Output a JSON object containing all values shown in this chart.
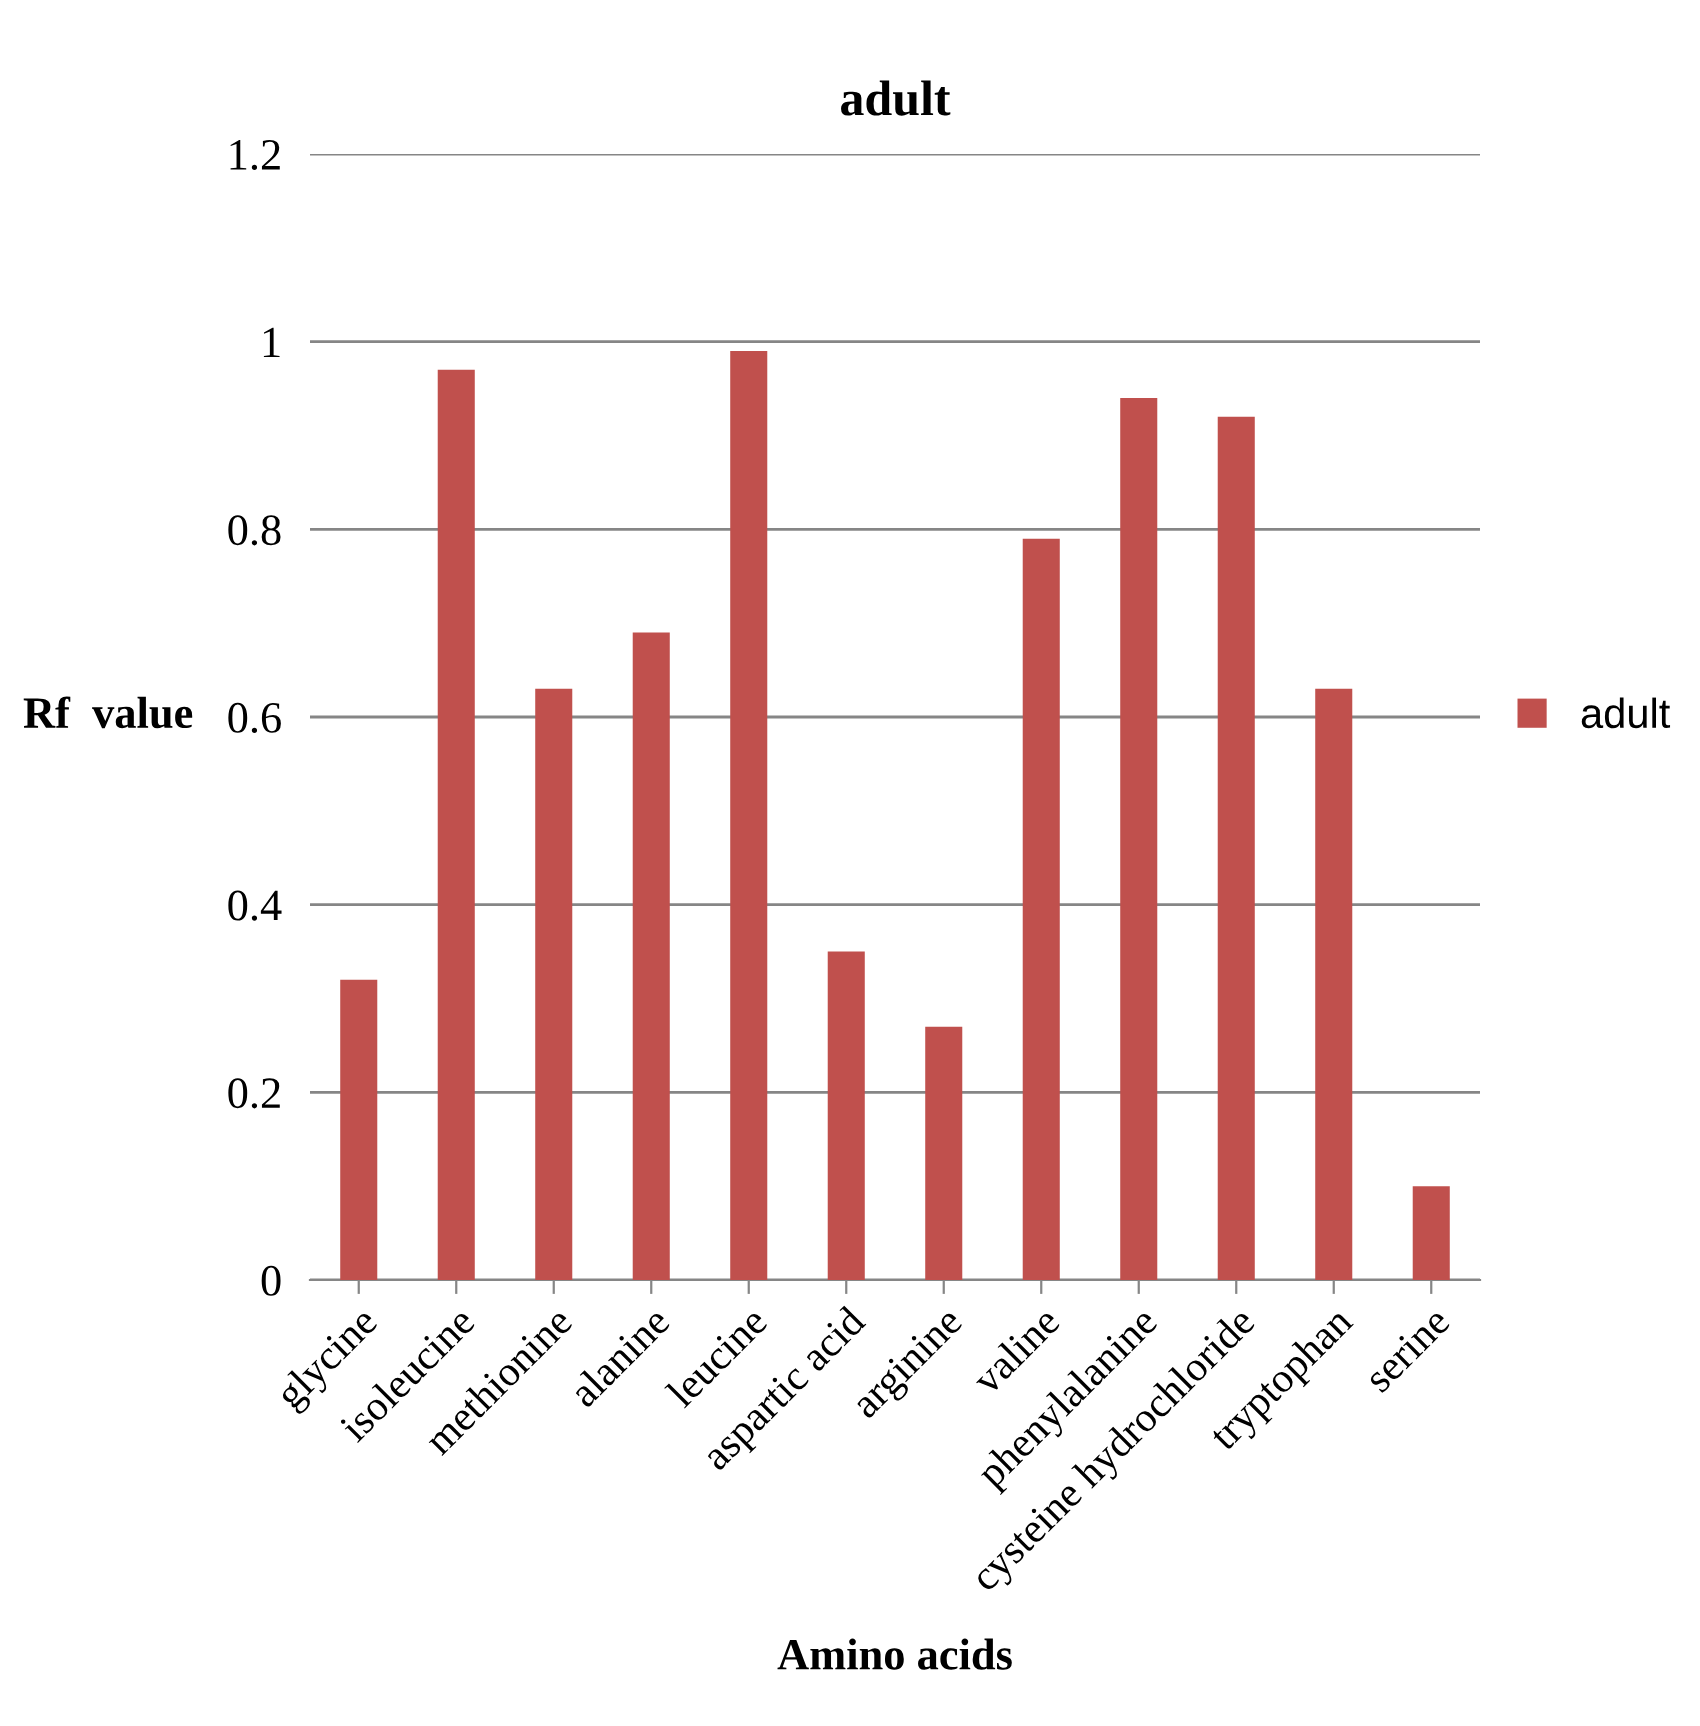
{
  "chart_data": {
    "type": "bar",
    "title": "adult",
    "xlabel": "Amino acids",
    "ylabel": "Rf  value",
    "categories": [
      "glycine",
      "isoleucine",
      "methionine",
      "alanine",
      "leucine",
      "aspartic acid",
      "arginine",
      "valine",
      "phenylalanine",
      "cysteine hydrochloride",
      "tryptophan",
      "serine"
    ],
    "series": [
      {
        "name": "adult",
        "color": "#c0504d",
        "values": [
          0.32,
          0.97,
          0.63,
          0.69,
          0.99,
          0.35,
          0.27,
          0.79,
          0.94,
          0.92,
          0.63,
          0.1
        ]
      }
    ],
    "ylim": [
      0,
      1.2
    ],
    "yticks": [
      0,
      0.2,
      0.4,
      0.6,
      0.8,
      1,
      1.2
    ],
    "grid": "y",
    "legend": "right"
  }
}
